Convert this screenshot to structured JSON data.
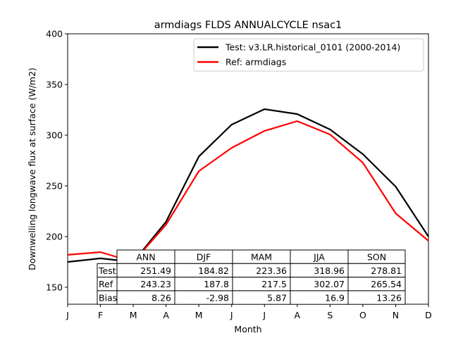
{
  "chart_data": {
    "type": "line",
    "title": "armdiags FLDS ANNUALCYCLE nsac1",
    "xlabel": "Month",
    "ylabel": "Downwelling longwave flux at surface (W/m2)",
    "categories": [
      "J",
      "F",
      "M",
      "A",
      "M",
      "J",
      "J",
      "A",
      "S",
      "O",
      "N",
      "D"
    ],
    "ylim": [
      133.3,
      400
    ],
    "yticks": [
      150,
      200,
      250,
      300,
      350,
      400
    ],
    "grid": false,
    "legend_position": "top-right",
    "series": [
      {
        "name": "Test: v3.LR.historical_0101 (2000-2014)",
        "color": "#000000",
        "values": [
          175.0,
          178.5,
          175.0,
          214.6,
          279.0,
          310.4,
          325.7,
          320.8,
          305.6,
          281.3,
          249.3,
          200.0
        ]
      },
      {
        "name": "Ref: armdiags",
        "color": "#ff0000",
        "values": [
          182.0,
          184.7,
          175.0,
          211.8,
          264.6,
          287.5,
          304.2,
          313.9,
          300.7,
          272.9,
          222.9,
          195.8
        ]
      }
    ],
    "table": {
      "columns": [
        "ANN",
        "DJF",
        "MAM",
        "JJA",
        "SON"
      ],
      "rows": [
        {
          "label": "Test",
          "values": [
            "251.49",
            "184.82",
            "223.36",
            "318.96",
            "278.81"
          ]
        },
        {
          "label": "Ref",
          "values": [
            "243.23",
            "187.8",
            "217.5",
            "302.07",
            "265.54"
          ]
        },
        {
          "label": "Bias",
          "values": [
            "8.26",
            "-2.98",
            "5.87",
            "16.9",
            "13.26"
          ]
        }
      ]
    }
  }
}
